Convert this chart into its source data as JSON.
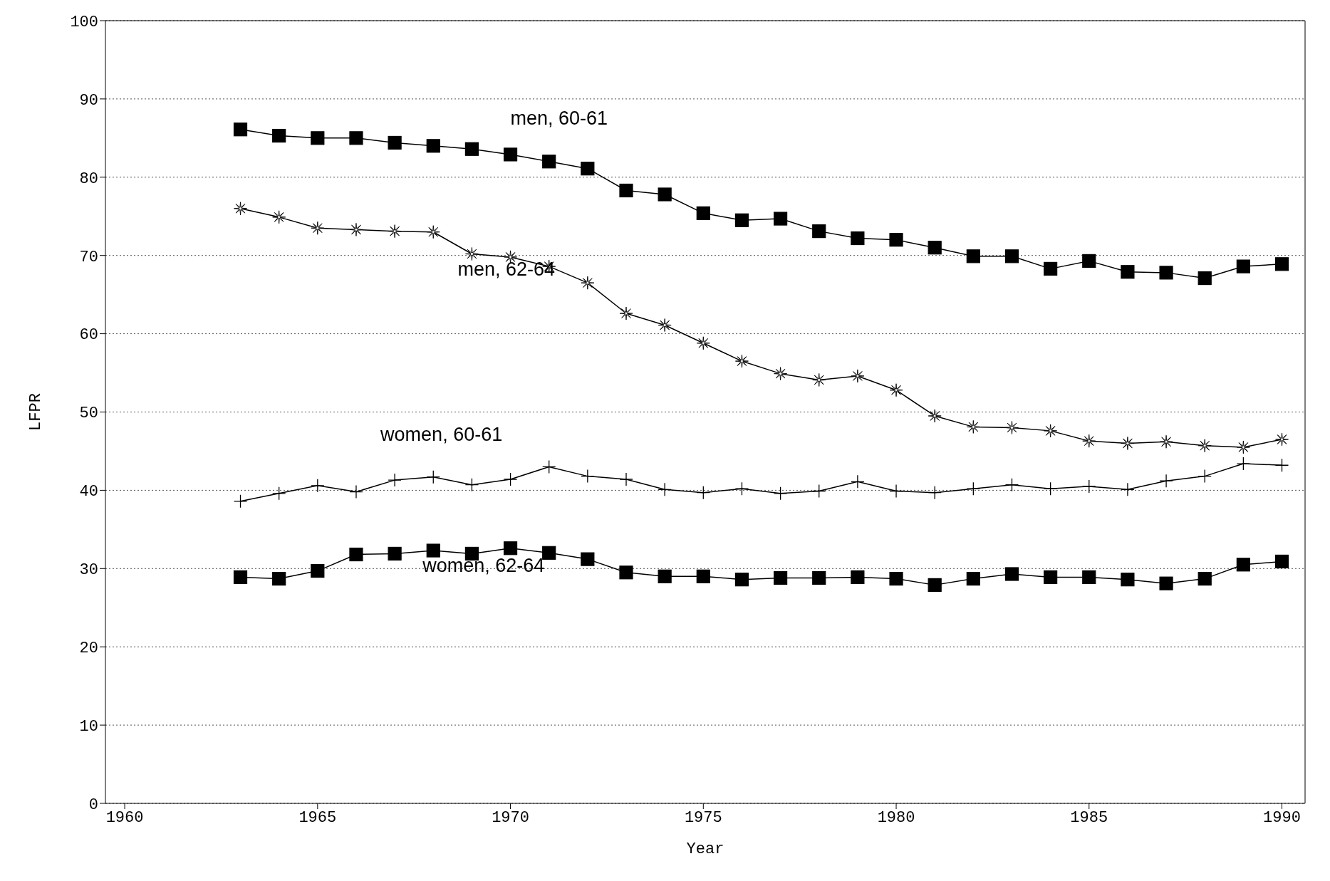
{
  "chart_data": {
    "type": "line",
    "xlabel": "Year",
    "ylabel": "LFPR",
    "x": [
      1963,
      1964,
      1965,
      1966,
      1967,
      1968,
      1969,
      1970,
      1971,
      1972,
      1973,
      1974,
      1975,
      1976,
      1977,
      1978,
      1979,
      1980,
      1981,
      1982,
      1983,
      1984,
      1985,
      1986,
      1987,
      1988,
      1989,
      1990
    ],
    "series": [
      {
        "name": "men, 60-61",
        "color": "#000000",
        "marker": "square",
        "values": [
          86.1,
          85.3,
          85.0,
          85.0,
          84.4,
          84.0,
          83.6,
          82.9,
          82.0,
          81.1,
          78.3,
          77.8,
          75.4,
          74.5,
          74.7,
          73.1,
          72.2,
          72.0,
          71.0,
          69.9,
          69.9,
          68.3,
          69.3,
          67.9,
          67.8,
          67.1,
          68.6,
          68.9
        ]
      },
      {
        "name": "men, 62-64",
        "color": "#000000",
        "marker": "star",
        "values": [
          76.0,
          74.9,
          73.5,
          73.3,
          73.1,
          73.0,
          70.2,
          69.8,
          68.6,
          66.5,
          62.6,
          61.1,
          58.8,
          56.5,
          54.9,
          54.1,
          54.6,
          52.8,
          49.5,
          48.1,
          48.0,
          47.6,
          46.3,
          46.0,
          46.2,
          45.7,
          45.5,
          46.5
        ]
      },
      {
        "name": "women, 60-61",
        "color": "#000000",
        "marker": "cross",
        "values": [
          38.6,
          39.6,
          40.6,
          39.8,
          41.3,
          41.7,
          40.7,
          41.4,
          43.0,
          41.8,
          41.4,
          40.1,
          39.7,
          40.2,
          39.6,
          39.9,
          41.1,
          39.9,
          39.7,
          40.2,
          40.7,
          40.2,
          40.5,
          40.1,
          41.2,
          41.8,
          43.4,
          43.2
        ]
      },
      {
        "name": "women, 62-64",
        "color": "#000000",
        "marker": "square",
        "values": [
          28.9,
          28.7,
          29.7,
          31.8,
          31.9,
          32.3,
          31.9,
          32.6,
          32.0,
          31.2,
          29.5,
          29.0,
          29.0,
          28.6,
          28.8,
          28.8,
          28.9,
          28.7,
          27.9,
          28.7,
          29.3,
          28.9,
          28.9,
          28.6,
          28.1,
          28.7,
          30.5,
          30.9
        ]
      }
    ],
    "xlim": [
      1959.5,
      1990.6
    ],
    "xticks": [
      1960,
      1965,
      1970,
      1975,
      1980,
      1985,
      1990
    ],
    "ylim": [
      0,
      100
    ],
    "yticks": [
      0,
      10,
      20,
      30,
      40,
      50,
      60,
      70,
      80,
      90,
      100
    ],
    "grid": "y",
    "legend": false,
    "line_style": "solid"
  }
}
